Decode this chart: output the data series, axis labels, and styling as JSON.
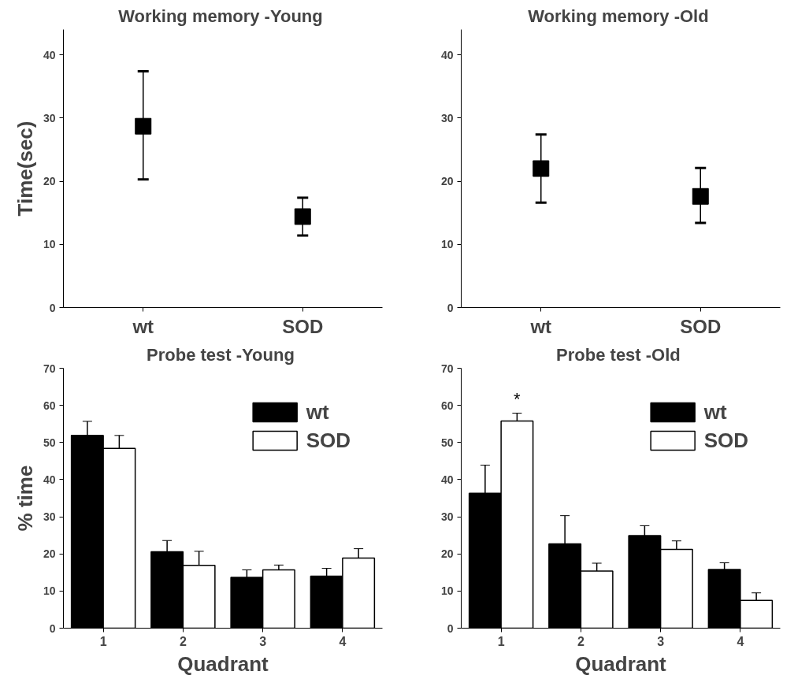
{
  "chart_data": [
    {
      "type": "scatter",
      "title": "Working memory  -Young",
      "ylabel": "Time(sec)",
      "categories": [
        "wt",
        "SOD"
      ],
      "marker": "square",
      "ylim": [
        0,
        44
      ],
      "yticks": [
        0,
        10,
        20,
        30,
        40
      ],
      "grid": false,
      "series": [
        {
          "color": "#000000",
          "values": [
            28.7,
            14.4
          ],
          "errors": [
            [
              20.3,
              37.4
            ],
            [
              11.4,
              17.4
            ]
          ]
        }
      ]
    },
    {
      "type": "scatter",
      "title": "Working memory  -Old",
      "categories": [
        "wt",
        "SOD"
      ],
      "marker": "square",
      "ylim": [
        0,
        44
      ],
      "yticks": [
        0,
        10,
        20,
        30,
        40
      ],
      "grid": false,
      "series": [
        {
          "color": "#000000",
          "values": [
            22.0,
            17.6
          ],
          "errors": [
            [
              16.6,
              27.4
            ],
            [
              13.4,
              22.1
            ]
          ]
        }
      ]
    },
    {
      "type": "bar",
      "title": "Probe test  -Young",
      "xlabel": "Quadrant",
      "ylabel": "% time",
      "categories": [
        "1",
        "2",
        "3",
        "4"
      ],
      "ylim": [
        0,
        70
      ],
      "yticks": [
        0,
        10,
        20,
        30,
        40,
        50,
        60,
        70
      ],
      "grid": false,
      "legend": "right",
      "series": [
        {
          "name": "wt",
          "color": "#000000",
          "values": [
            51.9,
            20.6,
            13.7,
            14.0
          ],
          "errors": [
            [
              51.9,
              55.7
            ],
            [
              20.6,
              23.6
            ],
            [
              13.7,
              15.7
            ],
            [
              14.0,
              16.1
            ]
          ]
        },
        {
          "name": "SOD",
          "color": "#ffffff",
          "values": [
            48.4,
            16.9,
            15.7,
            18.9
          ],
          "errors": [
            [
              48.4,
              51.9
            ],
            [
              16.9,
              20.7
            ],
            [
              15.7,
              17.0
            ],
            [
              18.9,
              21.4
            ]
          ]
        }
      ]
    },
    {
      "type": "bar",
      "title": "Probe test  -Old",
      "xlabel": "Quadrant",
      "categories": [
        "1",
        "2",
        "3",
        "4"
      ],
      "ylim": [
        0,
        70
      ],
      "yticks": [
        0,
        10,
        20,
        30,
        40,
        50,
        60,
        70
      ],
      "grid": false,
      "legend": "right",
      "annotations": [
        "*"
      ],
      "series": [
        {
          "name": "wt",
          "color": "#000000",
          "values": [
            36.3,
            22.7,
            24.9,
            15.8
          ],
          "errors": [
            [
              36.3,
              43.9
            ],
            [
              22.7,
              30.3
            ],
            [
              24.9,
              27.6
            ],
            [
              15.8,
              17.6
            ]
          ]
        },
        {
          "name": "SOD",
          "color": "#ffffff",
          "values": [
            55.8,
            15.4,
            21.2,
            7.5
          ],
          "errors": [
            [
              55.8,
              57.9
            ],
            [
              15.4,
              17.5
            ],
            [
              21.2,
              23.5
            ],
            [
              7.5,
              9.5
            ]
          ]
        }
      ]
    }
  ]
}
